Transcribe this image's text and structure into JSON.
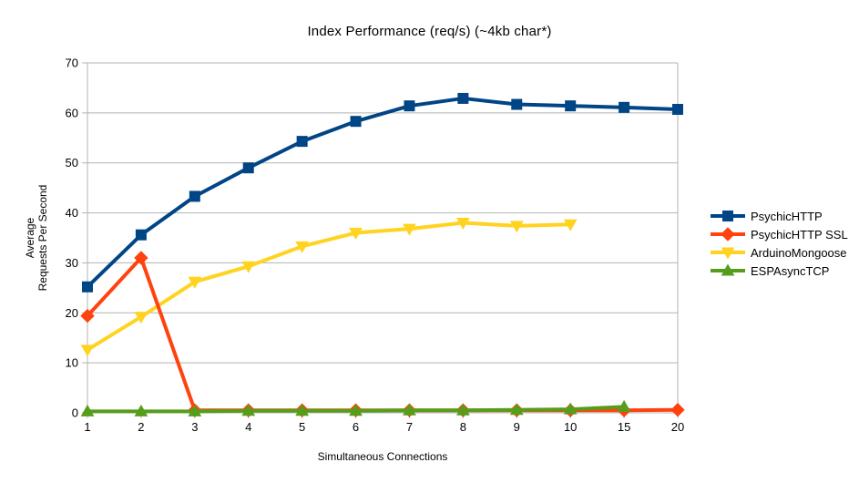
{
  "chart_data": {
    "type": "line",
    "title": "Index Performance (req/s) (~4kb char*)",
    "xlabel": "Simultaneous Connections",
    "ylabel": "Average\nRequests Per Second",
    "categories": [
      "1",
      "2",
      "3",
      "4",
      "5",
      "6",
      "7",
      "8",
      "9",
      "10",
      "15",
      "20"
    ],
    "ylim": [
      0,
      70
    ],
    "yticks": [
      0,
      10,
      20,
      30,
      40,
      50,
      60,
      70
    ],
    "grid": "horizontal-gridlines-on",
    "legend_position": "right",
    "axis_color": "#b3b3b3",
    "series": [
      {
        "name": "PsychicHTTP",
        "color": "#004586",
        "marker": "square",
        "values": [
          25.2,
          35.6,
          43.3,
          49.0,
          54.3,
          58.3,
          61.4,
          62.9,
          61.7,
          61.4,
          61.1,
          60.7
        ]
      },
      {
        "name": "PsychicHTTP SSL",
        "color": "#ff420e",
        "marker": "diamond",
        "values": [
          19.4,
          31.0,
          0.5,
          0.5,
          0.5,
          0.5,
          0.5,
          0.5,
          0.5,
          0.5,
          0.5,
          0.6
        ]
      },
      {
        "name": "ArduinoMongoose",
        "color": "#ffd320",
        "marker": "triangle-down",
        "values": [
          12.6,
          19.2,
          26.2,
          29.3,
          33.3,
          36.0,
          36.8,
          38.0,
          37.4,
          37.7,
          null,
          null
        ]
      },
      {
        "name": "ESPAsyncTCP",
        "color": "#579d1c",
        "marker": "triangle-up",
        "values": [
          0.3,
          0.3,
          0.3,
          0.4,
          0.4,
          0.4,
          0.5,
          0.5,
          0.6,
          0.7,
          1.2,
          null
        ]
      }
    ]
  }
}
